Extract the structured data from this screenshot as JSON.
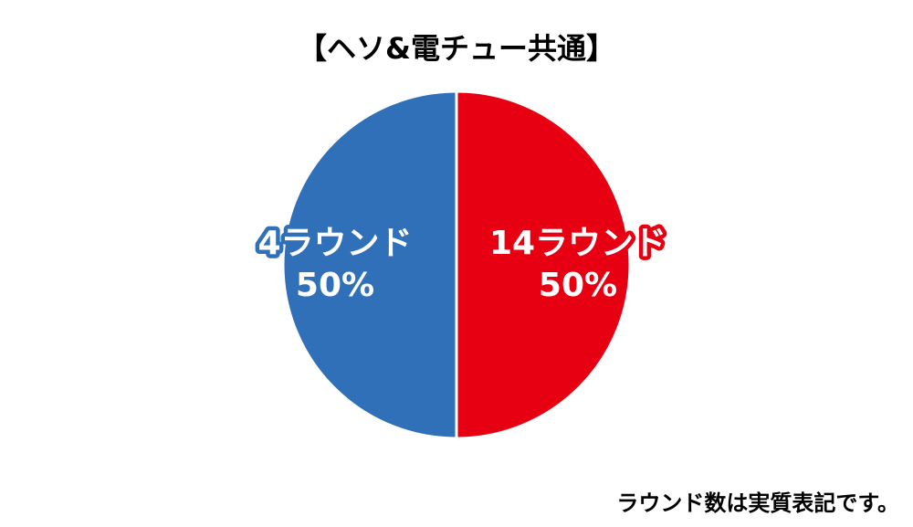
{
  "chart_data": {
    "type": "pie",
    "title": "【ヘソ&電チュー共通】",
    "categories": [
      "14ラウンド",
      "4ラウンド"
    ],
    "values": [
      50,
      50
    ],
    "value_labels": [
      "50%",
      "50%"
    ],
    "colors": [
      "#e60012",
      "#3070b8"
    ],
    "annotation": "ラウンド数は実質表記です。"
  }
}
